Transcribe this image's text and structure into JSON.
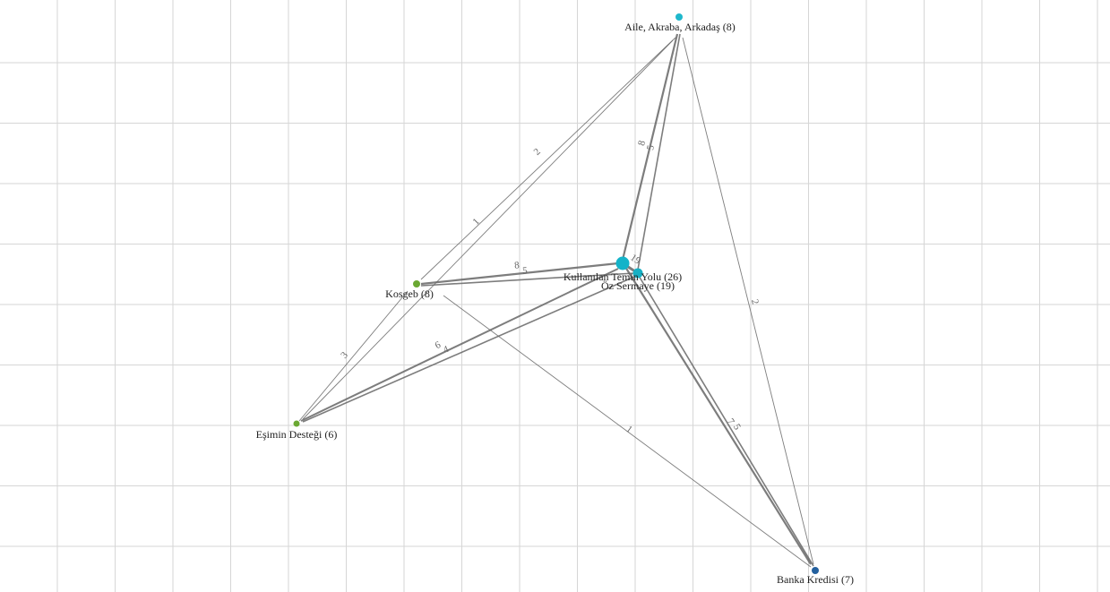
{
  "nodes": [
    {
      "label": "Aile, Akraba, Arkadaş (8)"
    },
    {
      "label": "Kullanılan Temin Yolu (26)"
    },
    {
      "label": "Öz Sermaye (19)"
    },
    {
      "label": "Kosgeb (8)"
    },
    {
      "label": "Eşimin Desteği (6)"
    },
    {
      "label": "Banka Kredisi (7)"
    }
  ],
  "edges": [
    {
      "label": 2
    },
    {
      "label": 1
    },
    {
      "label": 8
    },
    {
      "label": 5
    },
    {
      "label": 8
    },
    {
      "label": 5
    },
    {
      "label": 3
    },
    {
      "label": 6
    },
    {
      "label": 4
    },
    {
      "label": 19
    },
    {
      "label": 7
    },
    {
      "label": 5
    },
    {
      "label": 1
    },
    {
      "label": 2
    }
  ]
}
